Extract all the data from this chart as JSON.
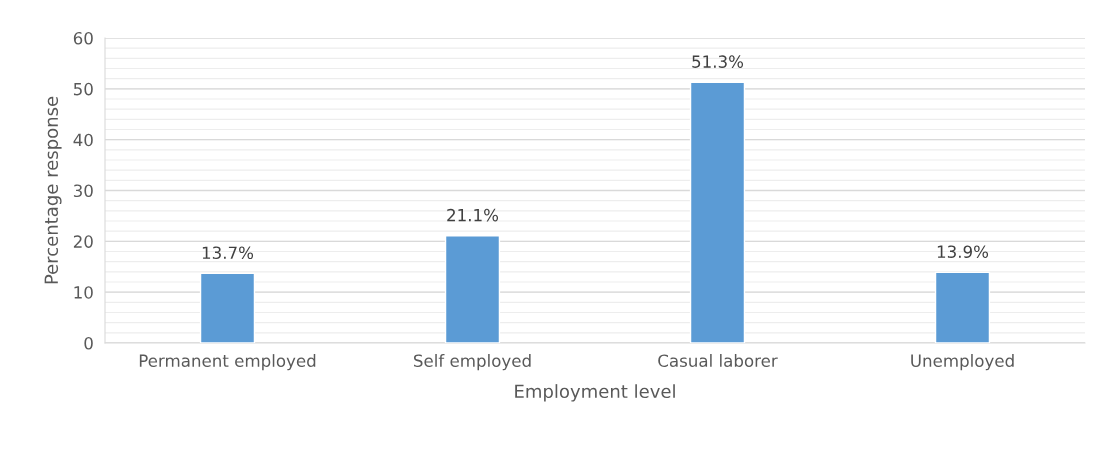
{
  "chart_data": {
    "type": "bar",
    "xlabel": "Employment level",
    "ylabel": "Percentage response",
    "categories": [
      "Permanent employed",
      "Self employed",
      "Casual laborer",
      "Unemployed"
    ],
    "values": [
      13.7,
      21.1,
      51.3,
      13.9
    ],
    "color": "#5b9bd5",
    "value_labels": [
      "13.7%",
      "21.1%",
      "51.3%",
      "13.9%"
    ],
    "ylim": [
      0,
      60
    ],
    "yticks": [
      0,
      10,
      20,
      30,
      40,
      50,
      60
    ],
    "grid": "y"
  }
}
